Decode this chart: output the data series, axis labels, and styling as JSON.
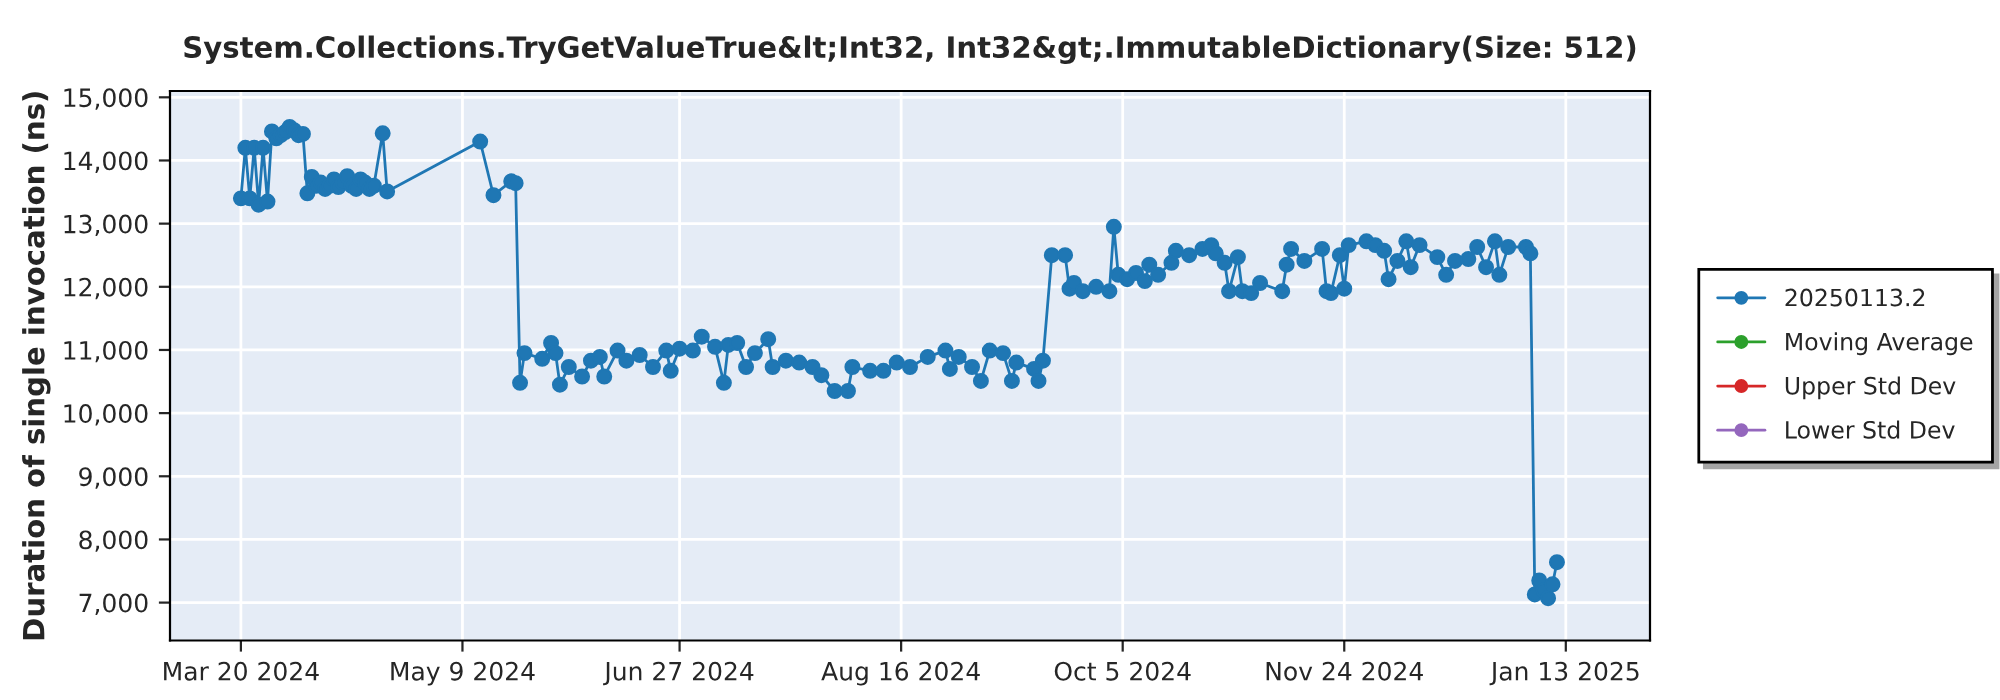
{
  "chart_data": {
    "type": "line",
    "title": "System.Collections.TryGetValueTrue&lt;Int32, Int32&gt;.ImmutableDictionary(Size: 512)",
    "ylabel": "Duration of single invocation (ns)",
    "xlim": [
      "2024-03-04",
      "2025-02-01"
    ],
    "ylim": [
      6400,
      15100
    ],
    "xticks": [
      {
        "value": "2024-03-20",
        "label": "Mar 20 2024"
      },
      {
        "value": "2024-05-09",
        "label": "May 9 2024"
      },
      {
        "value": "2024-06-27",
        "label": "Jun 27 2024"
      },
      {
        "value": "2024-08-16",
        "label": "Aug 16 2024"
      },
      {
        "value": "2024-10-05",
        "label": "Oct 5 2024"
      },
      {
        "value": "2024-11-24",
        "label": "Nov 24 2024"
      },
      {
        "value": "2025-01-13",
        "label": "Jan 13 2025"
      }
    ],
    "yticks": [
      {
        "value": 7000,
        "label": "7,000"
      },
      {
        "value": 8000,
        "label": "8,000"
      },
      {
        "value": 9000,
        "label": "9,000"
      },
      {
        "value": 10000,
        "label": "10,000"
      },
      {
        "value": 11000,
        "label": "11,000"
      },
      {
        "value": 12000,
        "label": "12,000"
      },
      {
        "value": 13000,
        "label": "13,000"
      },
      {
        "value": 14000,
        "label": "14,000"
      },
      {
        "value": 15000,
        "label": "15,000"
      }
    ],
    "grid": true,
    "legend": "right",
    "marker": "circle",
    "line_style": "solid",
    "series": [
      {
        "name": "20250113.2",
        "color": "#1f77b4",
        "x": [
          "2024-03-20",
          "2024-03-21",
          "2024-03-22",
          "2024-03-23",
          "2024-03-24",
          "2024-03-25",
          "2024-03-26",
          "2024-03-27",
          "2024-03-28",
          "2024-03-29",
          "2024-03-30",
          "2024-03-31",
          "2024-04-01",
          "2024-04-02",
          "2024-04-03",
          "2024-04-04",
          "2024-04-05",
          "2024-04-06",
          "2024-04-07",
          "2024-04-08",
          "2024-04-09",
          "2024-04-10",
          "2024-04-11",
          "2024-04-12",
          "2024-04-13",
          "2024-04-14",
          "2024-04-15",
          "2024-04-16",
          "2024-04-17",
          "2024-04-18",
          "2024-04-19",
          "2024-04-21",
          "2024-04-22",
          "2024-05-13",
          "2024-05-16",
          "2024-05-20",
          "2024-05-21",
          "2024-05-22",
          "2024-05-23",
          "2024-05-27",
          "2024-05-29",
          "2024-05-30",
          "2024-05-31",
          "2024-06-02",
          "2024-06-05",
          "2024-06-07",
          "2024-06-09",
          "2024-06-10",
          "2024-06-13",
          "2024-06-15",
          "2024-06-18",
          "2024-06-21",
          "2024-06-24",
          "2024-06-25",
          "2024-06-27",
          "2024-06-30",
          "2024-07-02",
          "2024-07-05",
          "2024-07-07",
          "2024-07-08",
          "2024-07-10",
          "2024-07-12",
          "2024-07-14",
          "2024-07-17",
          "2024-07-18",
          "2024-07-21",
          "2024-07-24",
          "2024-07-27",
          "2024-07-29",
          "2024-08-01",
          "2024-08-04",
          "2024-08-05",
          "2024-08-09",
          "2024-08-12",
          "2024-08-15",
          "2024-08-18",
          "2024-08-22",
          "2024-08-26",
          "2024-08-27",
          "2024-08-29",
          "2024-09-01",
          "2024-09-03",
          "2024-09-05",
          "2024-09-08",
          "2024-09-10",
          "2024-09-11",
          "2024-09-15",
          "2024-09-16",
          "2024-09-17",
          "2024-09-19",
          "2024-09-22",
          "2024-09-23",
          "2024-09-24",
          "2024-09-26",
          "2024-09-29",
          "2024-10-02",
          "2024-10-03",
          "2024-10-04",
          "2024-10-06",
          "2024-10-08",
          "2024-10-10",
          "2024-10-11",
          "2024-10-13",
          "2024-10-16",
          "2024-10-17",
          "2024-10-20",
          "2024-10-23",
          "2024-10-25",
          "2024-10-26",
          "2024-10-28",
          "2024-10-29",
          "2024-10-31",
          "2024-11-01",
          "2024-11-03",
          "2024-11-05",
          "2024-11-10",
          "2024-11-11",
          "2024-11-12",
          "2024-11-15",
          "2024-11-19",
          "2024-11-20",
          "2024-11-21",
          "2024-11-23",
          "2024-11-24",
          "2024-11-25",
          "2024-11-29",
          "2024-12-01",
          "2024-12-03",
          "2024-12-04",
          "2024-12-06",
          "2024-12-08",
          "2024-12-09",
          "2024-12-11",
          "2024-12-15",
          "2024-12-17",
          "2024-12-19",
          "2024-12-22",
          "2024-12-24",
          "2024-12-26",
          "2024-12-28",
          "2024-12-29",
          "2024-12-31",
          "2025-01-04",
          "2025-01-05",
          "2025-01-06",
          "2025-01-07",
          "2025-01-08",
          "2025-01-09",
          "2025-01-10",
          "2025-01-11"
        ],
        "values": [
          13400,
          14200,
          13400,
          14200,
          13300,
          14200,
          13350,
          14460,
          14350,
          14400,
          14450,
          14530,
          14480,
          14400,
          14420,
          13480,
          13740,
          13600,
          13650,
          13550,
          13600,
          13700,
          13580,
          13650,
          13750,
          13600,
          13550,
          13700,
          13650,
          13550,
          13600,
          14430,
          13510,
          14300,
          13450,
          13670,
          13640,
          10480,
          10950,
          10860,
          11110,
          10950,
          10450,
          10730,
          10580,
          10830,
          10890,
          10580,
          10990,
          10830,
          10920,
          10730,
          10990,
          10670,
          11020,
          10990,
          11210,
          11050,
          10480,
          11080,
          11110,
          10730,
          10950,
          11170,
          10730,
          10830,
          10800,
          10730,
          10600,
          10350,
          10350,
          10730,
          10670,
          10670,
          10800,
          10730,
          10890,
          10990,
          10700,
          10890,
          10730,
          10510,
          10990,
          10950,
          10510,
          10800,
          10700,
          10510,
          10830,
          12500,
          12500,
          11970,
          12060,
          11930,
          12000,
          11930,
          12950,
          12190,
          12120,
          12220,
          12090,
          12350,
          12190,
          12380,
          12570,
          12500,
          12600,
          12660,
          12530,
          12380,
          11930,
          12470,
          11930,
          11900,
          12060,
          11930,
          12350,
          12600,
          12410,
          12600,
          11930,
          11900,
          12500,
          11970,
          12660,
          12720,
          12660,
          12570,
          12120,
          12410,
          12720,
          12310,
          12660,
          12470,
          12190,
          12410,
          12440,
          12630,
          12310,
          12720,
          12190,
          12630,
          12630,
          12530,
          7130,
          7350,
          7190,
          7070,
          7290,
          7640
        ]
      },
      {
        "name": "Moving Average",
        "color": "#2ca02c"
      },
      {
        "name": "Upper Std Dev",
        "color": "#d62728"
      },
      {
        "name": "Lower Std Dev",
        "color": "#9467bd"
      }
    ]
  }
}
